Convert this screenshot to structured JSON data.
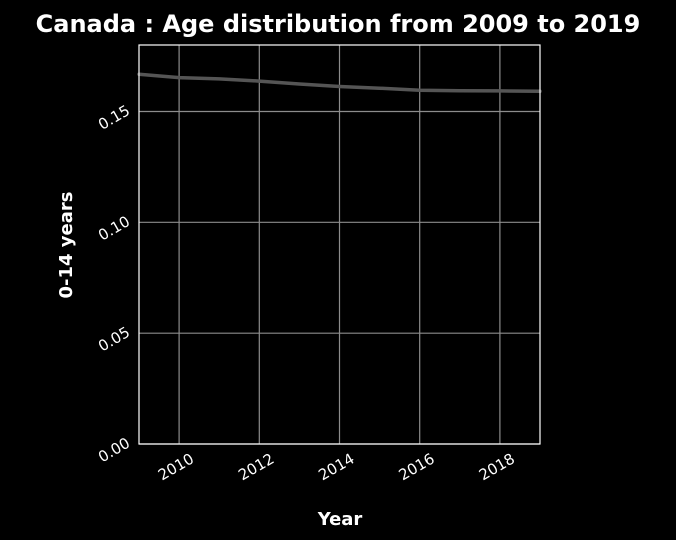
{
  "colors": {
    "background": "#000000",
    "text": "#ffffff",
    "grid": "#8c8c8c",
    "series": "#555555"
  },
  "chart_data": {
    "type": "line",
    "title": "Canada : Age distribution from 2009 to 2019",
    "xlabel": "Year",
    "ylabel": "0-14 years",
    "xlim": [
      2009,
      2019
    ],
    "ylim": [
      0,
      0.18
    ],
    "xticks": [
      2010,
      2012,
      2014,
      2016,
      2018
    ],
    "xtick_labels": [
      "2010",
      "2012",
      "2014",
      "2016",
      "2018"
    ],
    "yticks": [
      0,
      0.05,
      0.1,
      0.15
    ],
    "ytick_labels": [
      "0.00",
      "0.05",
      "0.10",
      "0.15"
    ],
    "grid": true,
    "legend": false,
    "series": [
      {
        "x": [
          2009,
          2010,
          2011,
          2012,
          2013,
          2014,
          2015,
          2016,
          2017,
          2018,
          2019
        ],
        "y": [
          0.1668,
          0.1653,
          0.1647,
          0.1637,
          0.1624,
          0.1613,
          0.1605,
          0.1596,
          0.1594,
          0.1593,
          0.1591
        ]
      }
    ]
  }
}
